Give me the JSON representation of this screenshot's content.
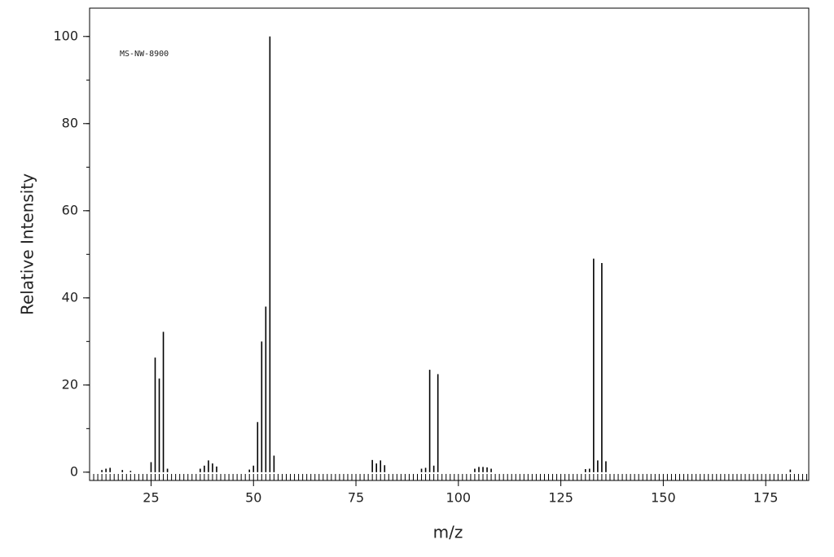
{
  "chart_data": {
    "type": "stem",
    "annotation": "MS-NW-8900",
    "x_label": "m/z",
    "y_label": "Relative Intensity",
    "x": [
      13,
      14,
      15,
      18,
      20,
      25,
      26,
      27,
      28,
      29,
      37,
      38,
      39,
      40,
      41,
      49,
      50,
      51,
      52,
      53,
      54,
      55,
      79,
      80,
      81,
      82,
      91,
      92,
      93,
      94,
      95,
      104,
      105,
      106,
      107,
      108,
      131,
      132,
      133,
      134,
      135,
      136,
      181
    ],
    "values": [
      0.5,
      0.8,
      1.0,
      0.5,
      0.3,
      2.3,
      26.3,
      21.5,
      32.2,
      0.8,
      0.8,
      1.5,
      2.7,
      2.0,
      1.3,
      0.6,
      1.5,
      11.5,
      30,
      38,
      100,
      3.8,
      2.8,
      2.0,
      2.7,
      1.6,
      0.8,
      1.0,
      23.5,
      1.5,
      22.5,
      0.8,
      1.2,
      1.2,
      1.1,
      0.8,
      0.7,
      0.8,
      49,
      2.7,
      48,
      2.5,
      0.6
    ],
    "color": "#000000",
    "xlim": [
      10,
      185.5
    ],
    "ylim": [
      -1.9,
      106.5
    ],
    "xticks": [
      25,
      50,
      75,
      100,
      125,
      150,
      175
    ],
    "yticks": [
      0,
      20,
      40,
      60,
      80,
      100
    ],
    "x_minor_tick_step": 1,
    "y_minor_tick_step": 10
  }
}
